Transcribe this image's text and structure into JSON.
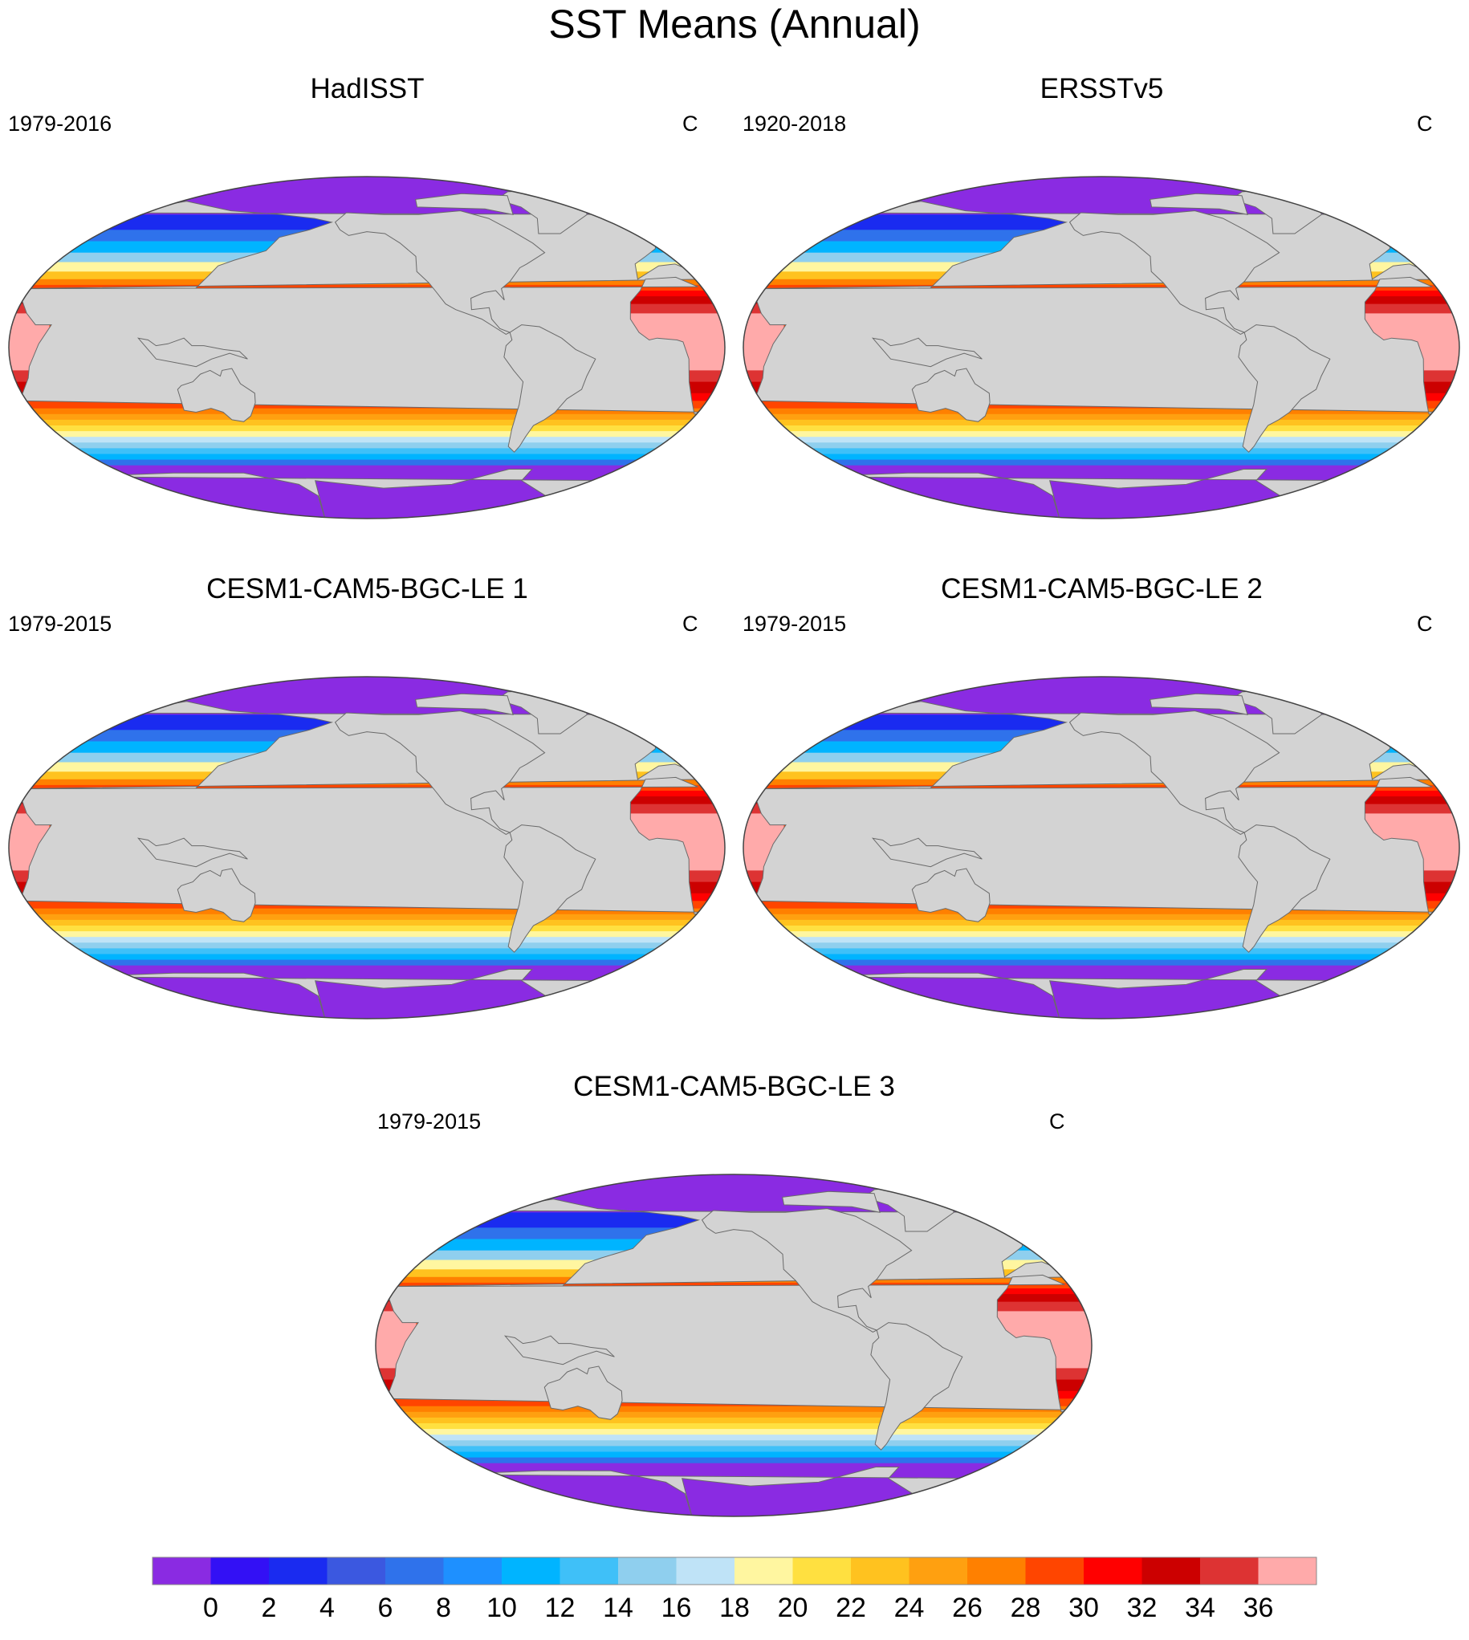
{
  "figure": {
    "title": "SST Means (Annual)"
  },
  "panels": [
    {
      "title": "HadISST",
      "period": "1979-2016",
      "units": "C"
    },
    {
      "title": "ERSSTv5",
      "period": "1920-2018",
      "units": "C"
    },
    {
      "title": "CESM1-CAM5-BGC-LE 1",
      "period": "1979-2015",
      "units": "C"
    },
    {
      "title": "CESM1-CAM5-BGC-LE 2",
      "period": "1979-2015",
      "units": "C"
    },
    {
      "title": "CESM1-CAM5-BGC-LE 3",
      "period": "1979-2015",
      "units": "C"
    }
  ],
  "map_style": {
    "land_color": "#d3d3d3",
    "missing_color": "#ffffff",
    "projection": "robinson-like, Pacific-centered"
  },
  "colorbar": {
    "tick_labels": [
      "0",
      "2",
      "4",
      "6",
      "8",
      "10",
      "12",
      "14",
      "16",
      "18",
      "20",
      "22",
      "24",
      "26",
      "28",
      "30",
      "32",
      "34",
      "36"
    ],
    "colors": [
      "#8a2be2",
      "#3310f5",
      "#1a2bf0",
      "#3b58e0",
      "#2f72eb",
      "#1e90ff",
      "#00b4ff",
      "#3fc0f8",
      "#8fcfee",
      "#bfe3f7",
      "#fff6a0",
      "#ffe040",
      "#ffc21f",
      "#ffa010",
      "#ff8000",
      "#ff4500",
      "#ff0000",
      "#cc0000",
      "#dd3333",
      "#ffaaaa"
    ]
  }
}
